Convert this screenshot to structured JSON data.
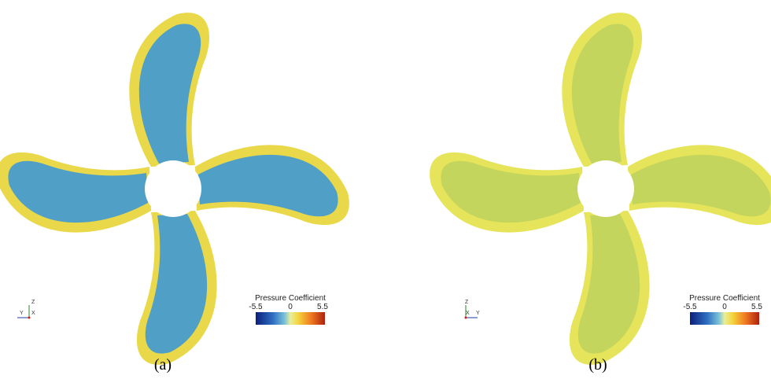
{
  "panels": [
    {
      "caption": "(a)",
      "legend": {
        "title": "Pressure Coefficient",
        "ticks": [
          "-5.5",
          "0",
          "5.5"
        ]
      },
      "axes": [
        "Z",
        "Y",
        "X"
      ]
    },
    {
      "caption": "(b)",
      "legend": {
        "title": "Pressure Coefficient",
        "ticks": [
          "-5.5",
          "0",
          "5.5"
        ]
      },
      "axes": [
        "Z",
        "X",
        "Y"
      ]
    }
  ]
}
